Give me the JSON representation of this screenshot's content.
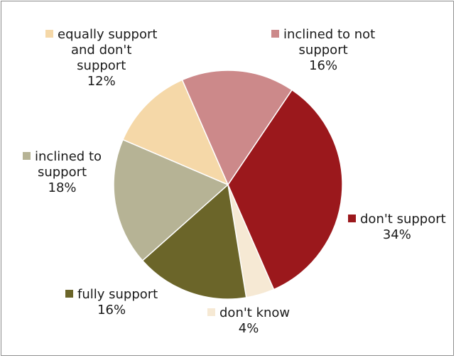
{
  "chart_data": {
    "type": "pie",
    "title": "",
    "start_angle_deg": 34,
    "direction": "clockwise",
    "slices": [
      {
        "key": "dont-support",
        "label_lines": [
          "don't support"
        ],
        "pct_text": "34%",
        "value": 34,
        "color": "#9b181c"
      },
      {
        "key": "dont-know",
        "label_lines": [
          "don't know"
        ],
        "pct_text": "4%",
        "value": 4,
        "color": "#f6e9d4"
      },
      {
        "key": "fully-support",
        "label_lines": [
          "fully support"
        ],
        "pct_text": "16%",
        "value": 16,
        "color": "#6b6529"
      },
      {
        "key": "inclined-to-support",
        "label_lines": [
          "inclined to",
          "support"
        ],
        "pct_text": "18%",
        "value": 18,
        "color": "#b6b395"
      },
      {
        "key": "equally-support",
        "label_lines": [
          "equally support",
          "and don't",
          "support"
        ],
        "pct_text": "12%",
        "value": 12,
        "color": "#f5d8a8"
      },
      {
        "key": "inclined-to-not-support",
        "label_lines": [
          "inclined to not",
          "support"
        ],
        "pct_text": "16%",
        "value": 16,
        "color": "#cc898a"
      }
    ]
  }
}
